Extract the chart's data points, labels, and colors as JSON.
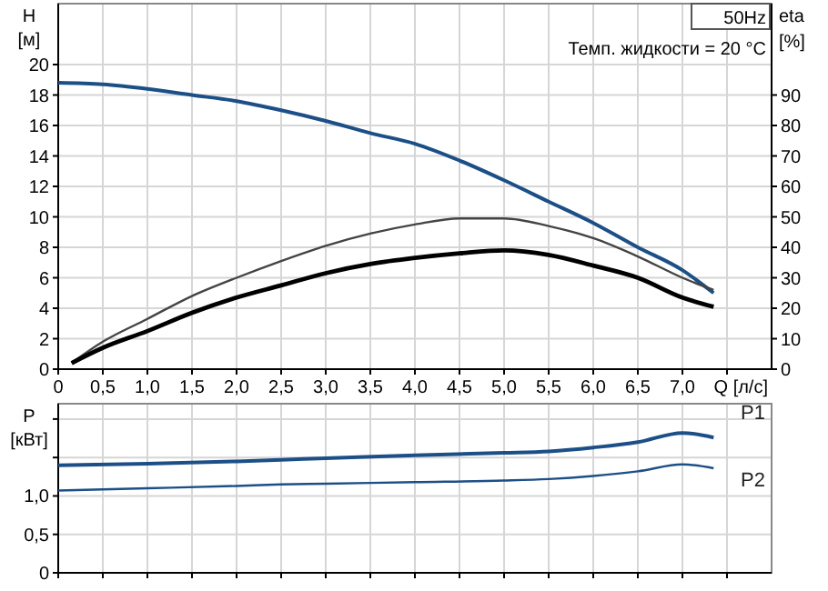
{
  "chart_data": [
    {
      "type": "line",
      "xlabel": "Q [л/с]",
      "ylabel": "H [м]",
      "y2label": "eta [%]",
      "annotations": [
        "50Hz",
        "Темп. жидкости = 20 °C"
      ],
      "grid": true,
      "marker": "none",
      "xlim": [
        0,
        8
      ],
      "ylim": [
        0,
        24
      ],
      "y2lim": [
        0,
        120
      ],
      "xticks": [
        0,
        {
          "value": 0.5,
          "label": "0,5"
        },
        {
          "value": 1,
          "label": "1,0"
        },
        {
          "value": 1.5,
          "label": "1,5"
        },
        {
          "value": 2,
          "label": "2,0"
        },
        {
          "value": 2.5,
          "label": "2,5"
        },
        {
          "value": 3,
          "label": "3,0"
        },
        {
          "value": 3.5,
          "label": "3,5"
        },
        {
          "value": 4,
          "label": "4,0"
        },
        {
          "value": 4.5,
          "label": "4,5"
        },
        {
          "value": 5,
          "label": "5,0"
        },
        {
          "value": 5.5,
          "label": "5,5"
        },
        {
          "value": 6,
          "label": "6,0"
        },
        {
          "value": 6.5,
          "label": "6,5"
        },
        {
          "value": 7,
          "label": "7,0"
        },
        {
          "value": 7.5,
          "label": null
        }
      ],
      "yticks": [
        0,
        2,
        4,
        6,
        8,
        10,
        12,
        14,
        16,
        18,
        20
      ],
      "y2ticks": [
        0,
        10,
        20,
        30,
        40,
        50,
        60,
        70,
        80,
        90
      ],
      "series": [
        {
          "color": "#1c4f87",
          "x": [
            0,
            0.5,
            1,
            1.5,
            2,
            2.5,
            3,
            3.5,
            4,
            4.5,
            5,
            5.5,
            6,
            6.5,
            7,
            7.35
          ],
          "values": [
            18.8,
            18.7,
            18.4,
            18.0,
            17.6,
            17.0,
            16.3,
            15.5,
            14.8,
            13.7,
            12.4,
            11.0,
            9.6,
            8.0,
            6.5,
            5.0
          ]
        },
        {
          "color": "#444444",
          "axis": "y2",
          "x": [
            0.15,
            0.5,
            1,
            1.5,
            2,
            2.5,
            3,
            3.5,
            4,
            4.5,
            5,
            5.5,
            6,
            6.5,
            7,
            7.35
          ],
          "values": [
            2,
            9,
            16.5,
            24,
            30,
            35.5,
            40.5,
            44.5,
            47.5,
            49.5,
            49.5,
            47,
            43,
            37,
            30,
            26
          ]
        },
        {
          "color": "#000000",
          "axis": "y2",
          "x": [
            0.15,
            0.5,
            1,
            1.5,
            2,
            2.5,
            3,
            3.5,
            4,
            4.5,
            5,
            5.5,
            6,
            6.5,
            7,
            7.35
          ],
          "values": [
            2,
            7,
            12.5,
            18.5,
            23.5,
            27.5,
            31.5,
            34.5,
            36.5,
            38,
            39,
            37.5,
            34,
            30,
            23.5,
            20.5
          ]
        }
      ]
    },
    {
      "type": "line",
      "ylabel": "P [кВт]",
      "grid": true,
      "legend": false,
      "marker": "none",
      "tick_labels": "y",
      "xlim": [
        0,
        8
      ],
      "ylim": [
        0,
        2.2
      ],
      "xticks": [
        0,
        0.5,
        1,
        1.5,
        2,
        2.5,
        3,
        3.5,
        4,
        4.5,
        5,
        5.5,
        6,
        6.5,
        7,
        7.5
      ],
      "yticks": [
        0,
        {
          "value": 0.5,
          "label": "0,5"
        },
        {
          "value": 1,
          "label": "1,0"
        },
        {
          "value": 1.5,
          "label": null
        },
        {
          "value": 2,
          "label": null
        }
      ],
      "series": [
        {
          "name": "P1",
          "color": "#1c4f87",
          "x": [
            0,
            1,
            2,
            2.5,
            3,
            4,
            5,
            5.5,
            6,
            6.5,
            7,
            7.35
          ],
          "values": [
            1.4,
            1.42,
            1.45,
            1.47,
            1.49,
            1.53,
            1.56,
            1.58,
            1.63,
            1.7,
            1.82,
            1.76
          ]
        },
        {
          "name": "P2",
          "color": "#1c4f87",
          "x": [
            0,
            1,
            2,
            2.5,
            3,
            4,
            5,
            5.5,
            6,
            6.5,
            7,
            7.35
          ],
          "values": [
            1.07,
            1.1,
            1.13,
            1.15,
            1.16,
            1.18,
            1.2,
            1.22,
            1.26,
            1.32,
            1.41,
            1.36
          ]
        }
      ]
    }
  ]
}
